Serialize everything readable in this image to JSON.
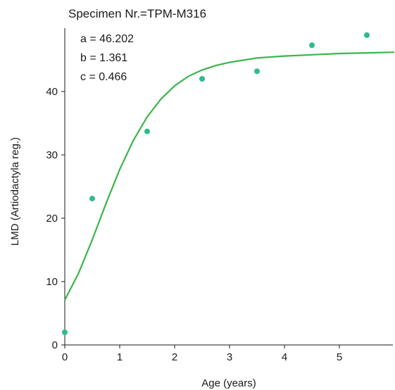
{
  "chart_data": {
    "type": "scatter",
    "title": "Specimen Nr.=TPM-M316",
    "xlabel": "Age (years)",
    "ylabel": "LMD (Artiodactyla reg.)",
    "xlim": [
      0,
      6
    ],
    "ylim": [
      0,
      50
    ],
    "x_ticks": [
      0,
      1,
      2,
      3,
      4,
      5
    ],
    "y_ticks": [
      0,
      10,
      20,
      30,
      40
    ],
    "grid": false,
    "annotations": [
      "a = 46.202",
      "b = 1.361",
      "c = 0.466"
    ],
    "points": {
      "x": [
        0,
        0.5,
        1.5,
        2.5,
        3.5,
        4.5,
        5.5
      ],
      "y": [
        2.0,
        23.1,
        33.7,
        42.0,
        43.2,
        47.3,
        48.9
      ],
      "color": "#2dbb8b"
    },
    "fit": {
      "x": [
        0,
        0.25,
        0.5,
        0.75,
        1.0,
        1.25,
        1.5,
        1.75,
        2.0,
        2.25,
        2.5,
        2.75,
        3.0,
        3.5,
        4.0,
        4.5,
        5.0,
        5.5,
        6.0
      ],
      "y": [
        7.1,
        11.3,
        16.6,
        22.3,
        27.7,
        32.3,
        36.0,
        38.8,
        40.9,
        42.4,
        43.4,
        44.1,
        44.6,
        45.3,
        45.6,
        45.8,
        46.0,
        46.1,
        46.2
      ],
      "color": "#3ab54a"
    }
  }
}
